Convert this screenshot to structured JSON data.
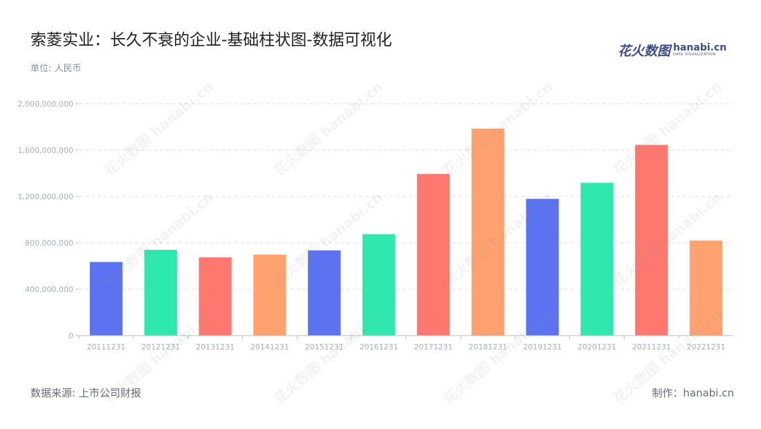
{
  "header": {
    "title": "索菱实业：长久不衰的企业-基础柱状图-数据可视化",
    "unit": "单位: 人民币"
  },
  "logo": {
    "cn": "花火数图",
    "en": "hanabi.cn",
    "en_sub": "DATA VISUALIZATION"
  },
  "footer": {
    "source": "数据来源: 上市公司财报",
    "credit": "制作：hanabi.cn"
  },
  "watermark": {
    "text": "花火数图 hanabi.cn"
  },
  "colors": {
    "palette": [
      "#5b73f0",
      "#2ee8b0",
      "#ff7870",
      "#ffa26f"
    ],
    "grid": "#dcdcdc",
    "axis": "#bbbbbb",
    "tick_label": "#a8adb5"
  },
  "chart_data": {
    "type": "bar",
    "categories": [
      "20111231",
      "20121231",
      "20131231",
      "20141231",
      "20151231",
      "20161231",
      "20171231",
      "20181231",
      "20191231",
      "20201231",
      "20211231",
      "20221231"
    ],
    "values": [
      635000000,
      740000000,
      675000000,
      698000000,
      735000000,
      875000000,
      1395000000,
      1785000000,
      1180000000,
      1318000000,
      1645000000,
      820000000
    ],
    "yticks": [
      0,
      400000000,
      800000000,
      1200000000,
      1600000000,
      2000000000
    ],
    "ytick_labels": [
      "0",
      "400,000,000",
      "800,000,000",
      "1,200,000,000",
      "1,600,000,000",
      "2,000,000,000"
    ],
    "ylim": [
      0,
      2000000000
    ],
    "grid": true,
    "legend": "none"
  }
}
